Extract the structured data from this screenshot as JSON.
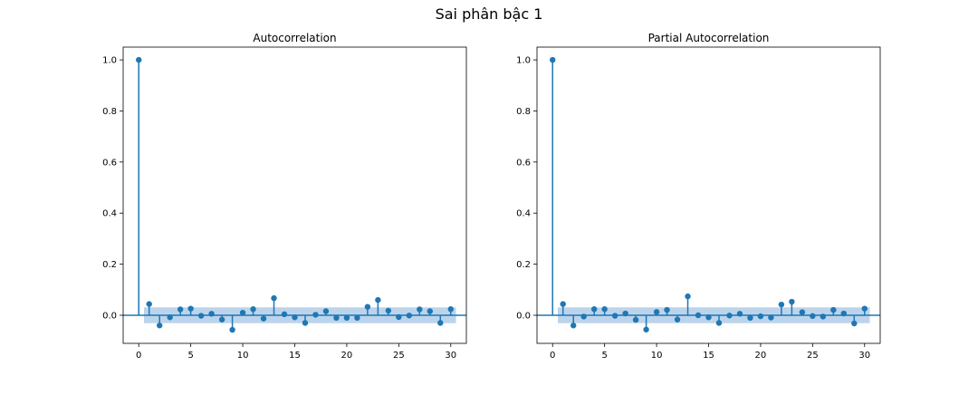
{
  "figure": {
    "title": "Sai phân bậc 1"
  },
  "colors": {
    "stem": "#1f77b4",
    "band": "#a6c6e4",
    "axis": "#000000"
  },
  "chart_data": [
    {
      "type": "stem",
      "title": "Autocorrelation",
      "xlabel": "",
      "ylabel": "",
      "xlim": [
        -1.5,
        31.5
      ],
      "ylim": [
        -0.11,
        1.05
      ],
      "xticks": [
        0,
        5,
        10,
        15,
        20,
        25,
        30
      ],
      "yticks": [
        0.0,
        0.2,
        0.4,
        0.6,
        0.8,
        1.0
      ],
      "ytick_labels": [
        "0.0",
        "0.2",
        "0.4",
        "0.6",
        "0.8",
        "1.0"
      ],
      "confidence_band": [
        -0.031,
        0.031
      ],
      "lags": [
        0,
        1,
        2,
        3,
        4,
        5,
        6,
        7,
        8,
        9,
        10,
        11,
        12,
        13,
        14,
        15,
        16,
        17,
        18,
        19,
        20,
        21,
        22,
        23,
        24,
        25,
        26,
        27,
        28,
        29,
        30
      ],
      "values": [
        1.0,
        0.044,
        -0.04,
        -0.008,
        0.023,
        0.026,
        -0.002,
        0.006,
        -0.017,
        -0.057,
        0.01,
        0.024,
        -0.013,
        0.067,
        0.004,
        -0.008,
        -0.03,
        0.002,
        0.016,
        -0.01,
        -0.01,
        -0.01,
        0.033,
        0.06,
        0.018,
        -0.007,
        -0.001,
        0.023,
        0.016,
        -0.03,
        0.024
      ]
    },
    {
      "type": "stem",
      "title": "Partial Autocorrelation",
      "xlabel": "",
      "ylabel": "",
      "xlim": [
        -1.5,
        31.5
      ],
      "ylim": [
        -0.11,
        1.05
      ],
      "xticks": [
        0,
        5,
        10,
        15,
        20,
        25,
        30
      ],
      "yticks": [
        0.0,
        0.2,
        0.4,
        0.6,
        0.8,
        1.0
      ],
      "ytick_labels": [
        "0.0",
        "0.2",
        "0.4",
        "0.6",
        "0.8",
        "1.0"
      ],
      "confidence_band": [
        -0.031,
        0.031
      ],
      "lags": [
        0,
        1,
        2,
        3,
        4,
        5,
        6,
        7,
        8,
        9,
        10,
        11,
        12,
        13,
        14,
        15,
        16,
        17,
        18,
        19,
        20,
        21,
        22,
        23,
        24,
        25,
        26,
        27,
        28,
        29,
        30
      ],
      "values": [
        1.0,
        0.044,
        -0.04,
        -0.005,
        0.024,
        0.024,
        -0.002,
        0.007,
        -0.018,
        -0.056,
        0.013,
        0.021,
        -0.017,
        0.074,
        0.0,
        -0.008,
        -0.03,
        -0.001,
        0.006,
        -0.01,
        -0.004,
        -0.009,
        0.042,
        0.053,
        0.012,
        -0.003,
        -0.005,
        0.021,
        0.007,
        -0.032,
        0.026
      ]
    }
  ]
}
